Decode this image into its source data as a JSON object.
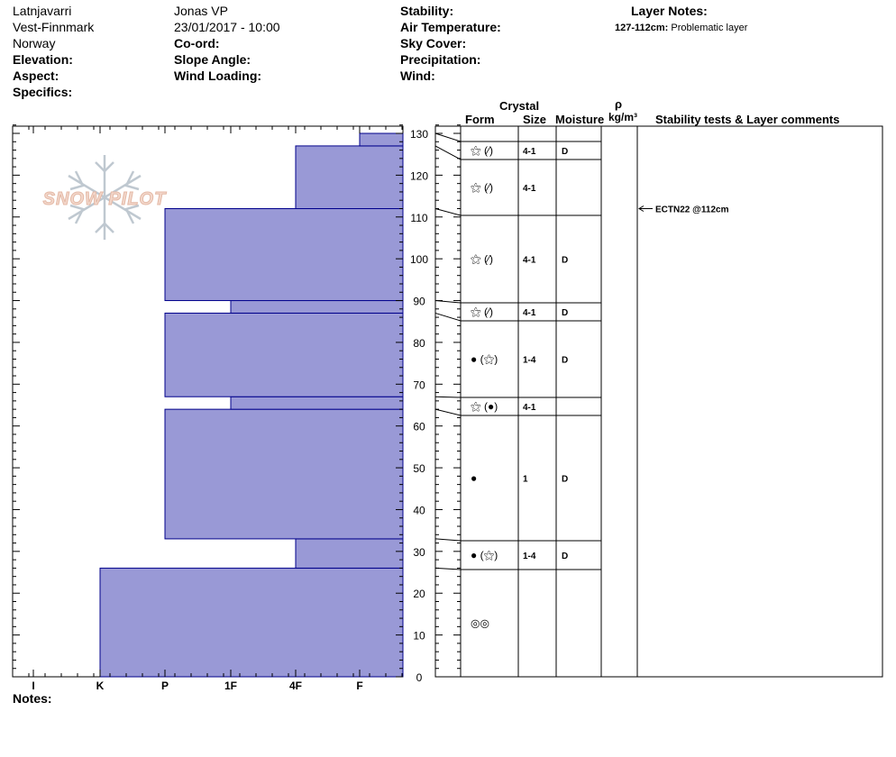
{
  "header": {
    "location": "Latnjavarri",
    "region": "Vest-Finnmark",
    "country": "Norway",
    "elevation_label": "Elevation:",
    "aspect_label": "Aspect:",
    "specifics_label": "Specifics:",
    "observer": "Jonas VP",
    "datetime": "23/01/2017 - 10:00",
    "coord_label": "Co-ord:",
    "slope_label": "Slope Angle:",
    "wind_loading_label": "Wind Loading:",
    "stability_label": "Stability:",
    "air_temp_label": "Air Temperature:",
    "sky_cover_label": "Sky Cover:",
    "precip_label": "Precipitation:",
    "wind_label": "Wind:",
    "layer_notes_title": "Layer Notes:",
    "layer_note_range": "127-112cm:",
    "layer_note_text": "Problematic layer"
  },
  "footer": {
    "notes_label": "Notes:"
  },
  "logo": {
    "text": "SNOW PILOT"
  },
  "table_headers": {
    "crystal": "Crystal",
    "form": "Form",
    "size": "Size",
    "moisture": "Moisture",
    "rho": "ρ",
    "density_unit": "kg/m³",
    "stability_comments": "Stability tests & Layer comments"
  },
  "stability_test": {
    "text": "ECTN22 @112cm",
    "height": 112
  },
  "colors": {
    "bar_fill": "#9999d6",
    "bar_stroke": "#00008b"
  },
  "chart_data": {
    "type": "bar",
    "orientation": "horizontal",
    "description_axis": "hardness",
    "xticks": [
      "I",
      "K",
      "P",
      "1F",
      "4F",
      "F"
    ],
    "ylim": [
      0,
      135
    ],
    "yticks": [
      0,
      10,
      20,
      30,
      40,
      50,
      60,
      70,
      80,
      90,
      100,
      110,
      120,
      130
    ],
    "layers": [
      {
        "bottom": 0,
        "top": 26,
        "hardness": "K"
      },
      {
        "bottom": 26,
        "top": 33,
        "hardness": "4F"
      },
      {
        "bottom": 33,
        "top": 64,
        "hardness": "P"
      },
      {
        "bottom": 64,
        "top": 67,
        "hardness": "1F"
      },
      {
        "bottom": 67,
        "top": 87,
        "hardness": "P"
      },
      {
        "bottom": 87,
        "top": 90,
        "hardness": "1F"
      },
      {
        "bottom": 90,
        "top": 112,
        "hardness": "P"
      },
      {
        "bottom": 112,
        "top": 127,
        "hardness": "4F"
      },
      {
        "bottom": 127,
        "top": 130,
        "hardness": "F"
      }
    ],
    "grain_rows": [
      {
        "bottom": 127,
        "top": 130,
        "form": "⚝ (⁄)",
        "size": "4-1",
        "moisture": "D"
      },
      {
        "bottom": 112,
        "top": 127,
        "form": "⚝ (⁄)",
        "size": "4-1",
        "moisture": ""
      },
      {
        "bottom": 90,
        "top": 112,
        "form": "⚝ (⁄)",
        "size": "4-1",
        "moisture": "D"
      },
      {
        "bottom": 87,
        "top": 90,
        "form": "⚝ (⁄)",
        "size": "4-1",
        "moisture": "D"
      },
      {
        "bottom": 67,
        "top": 87,
        "form": "● (⚝)",
        "size": "1-4",
        "moisture": "D"
      },
      {
        "bottom": 64,
        "top": 67,
        "form": "⚝ (●)",
        "size": "4-1",
        "moisture": ""
      },
      {
        "bottom": 33,
        "top": 64,
        "form": "●",
        "size": "1",
        "moisture": "D"
      },
      {
        "bottom": 26,
        "top": 33,
        "form": "● (⚝)",
        "size": "1-4",
        "moisture": "D"
      },
      {
        "bottom": 0,
        "top": 26,
        "form": "◎◎",
        "size": "",
        "moisture": ""
      }
    ]
  }
}
